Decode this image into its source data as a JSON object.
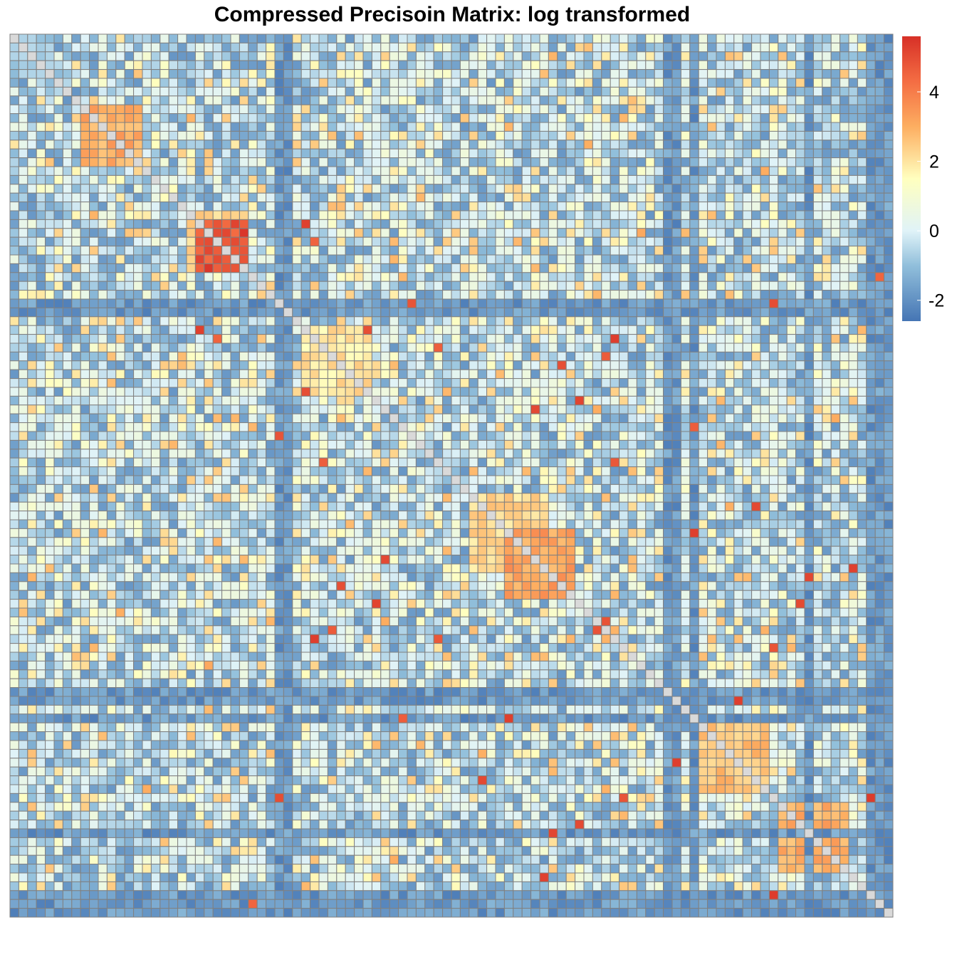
{
  "chart_data": {
    "type": "heatmap",
    "title": "Compressed Precisoin Matrix: log transformed",
    "rows": 100,
    "cols": 100,
    "symmetric": true,
    "color_scale": {
      "min": -2.6,
      "max": 5.6,
      "stops": [
        {
          "value": -2.6,
          "color": "#4575B4"
        },
        {
          "value": -1.0,
          "color": "#91BFDB"
        },
        {
          "value": 0.0,
          "color": "#E0F3F8"
        },
        {
          "value": 1.5,
          "color": "#FFFFBF"
        },
        {
          "value": 3.0,
          "color": "#FDAE61"
        },
        {
          "value": 4.3,
          "color": "#F46D43"
        },
        {
          "value": 5.6,
          "color": "#D73027"
        }
      ],
      "diagonal_color": "#D9D9D9"
    },
    "legend": {
      "position": "right",
      "ticks": [
        {
          "value": 4,
          "label": "4"
        },
        {
          "value": 2,
          "label": "2"
        },
        {
          "value": 0,
          "label": "0"
        },
        {
          "value": -2,
          "label": "-2"
        }
      ]
    },
    "grid_color": "#808080",
    "blocks": [
      {
        "start": 0,
        "end": 4,
        "value": -0.8
      },
      {
        "start": 8,
        "end": 14,
        "value": 3.0
      },
      {
        "start": 20,
        "end": 26,
        "value": 2.4
      },
      {
        "start": 21,
        "end": 26,
        "value": 4.8
      },
      {
        "start": 33,
        "end": 40,
        "value": 2.0
      },
      {
        "start": 52,
        "end": 60,
        "value": 2.2
      },
      {
        "start": 56,
        "end": 63,
        "value": 3.2
      },
      {
        "start": 78,
        "end": 85,
        "value": 2.6
      },
      {
        "start": 87,
        "end": 94,
        "value": 3.0
      }
    ],
    "low_lines": [
      30,
      31,
      74,
      75,
      77,
      90,
      97,
      98,
      99
    ],
    "hot_cells": [
      [
        27,
        98
      ],
      [
        34,
        23
      ],
      [
        34,
        68
      ],
      [
        33,
        21
      ],
      [
        25,
        26
      ],
      [
        26,
        22
      ],
      [
        35,
        48
      ],
      [
        40,
        33
      ],
      [
        42,
        59
      ],
      [
        45,
        30
      ],
      [
        48,
        68
      ],
      [
        56,
        77
      ],
      [
        61,
        90
      ],
      [
        62,
        37
      ],
      [
        64,
        41
      ],
      [
        66,
        67
      ],
      [
        67,
        36
      ],
      [
        69,
        86
      ],
      [
        77,
        44
      ],
      [
        82,
        75
      ],
      [
        84,
        53
      ],
      [
        86,
        30
      ],
      [
        89,
        64
      ],
      [
        95,
        60
      ],
      [
        97,
        86
      ]
    ]
  }
}
